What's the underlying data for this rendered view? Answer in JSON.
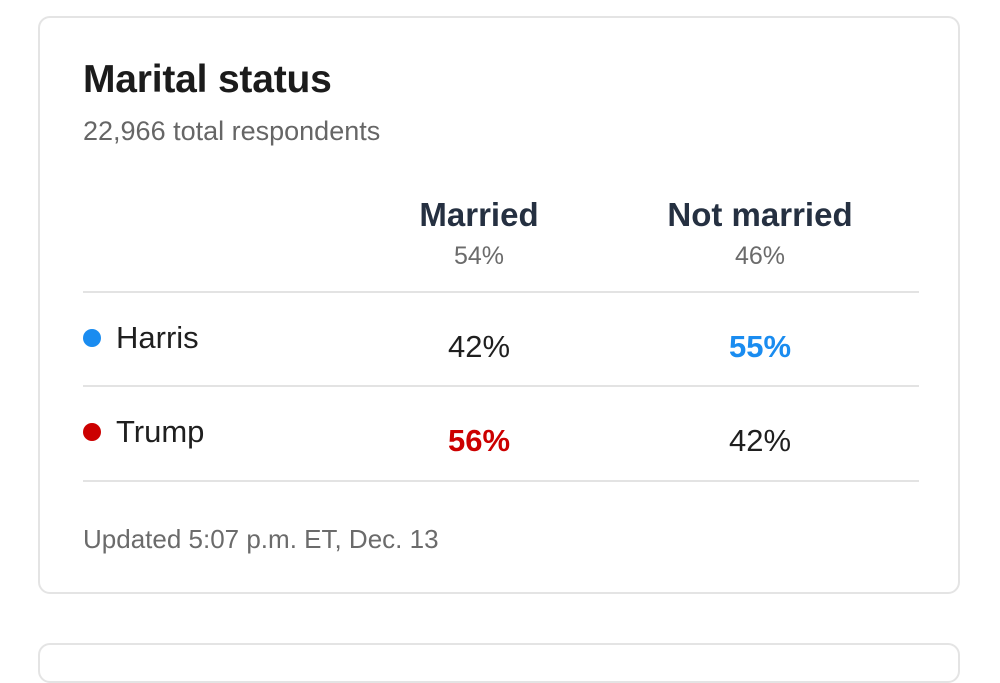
{
  "card": {
    "title": "Marital status",
    "subtitle": "22,966 total respondents",
    "columns": [
      {
        "label": "Married",
        "share": "54%"
      },
      {
        "label": "Not married",
        "share": "46%"
      }
    ],
    "rows": [
      {
        "candidate": "Harris",
        "color": "#1a8cf0",
        "values": [
          "42%",
          "55%"
        ],
        "winner_col": 1
      },
      {
        "candidate": "Trump",
        "color": "#cc0000",
        "values": [
          "56%",
          "42%"
        ],
        "winner_col": 0
      }
    ],
    "updated": "Updated 5:07 p.m. ET, Dec. 13"
  }
}
